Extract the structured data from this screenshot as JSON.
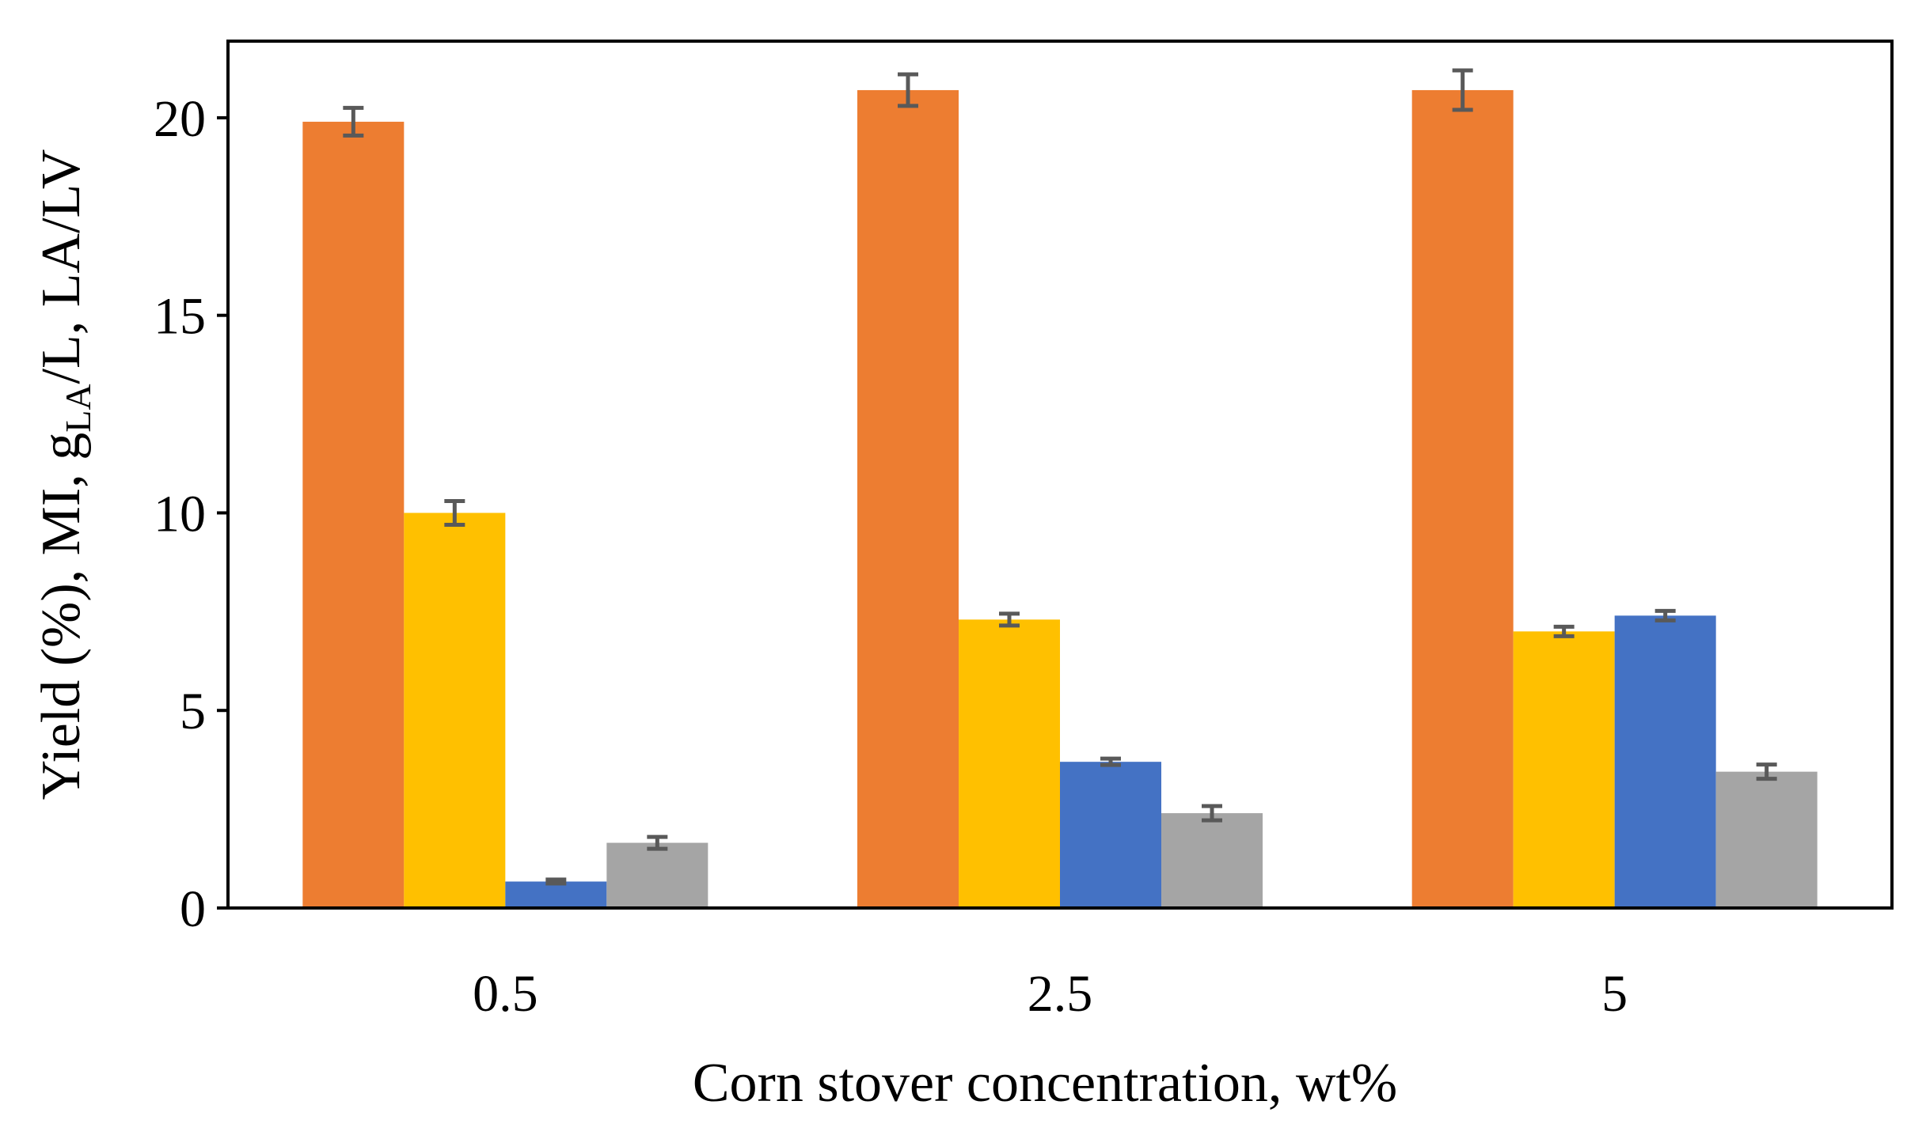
{
  "chart_data": {
    "type": "bar",
    "title": "",
    "xlabel": "Corn stover concentration, wt%",
    "ylabel": {
      "part1": "Yield (%), MI, g",
      "subscript": "LA",
      "part2": "/L,  LA/LV"
    },
    "categories": [
      "0.5",
      "2.5",
      "5"
    ],
    "ylim": [
      0,
      21.94
    ],
    "yticks": [
      0,
      5,
      10,
      15,
      20
    ],
    "ytick_labels": [
      "0",
      "5",
      "10",
      "15",
      "20"
    ],
    "grid": false,
    "legend": "none",
    "series": [
      {
        "name": "Yield (%)",
        "color": "#ED7D31",
        "values": [
          19.9,
          20.7,
          20.7
        ],
        "errors": [
          0.35,
          0.4,
          0.5
        ]
      },
      {
        "name": "MI",
        "color": "#FFC000",
        "values": [
          10.0,
          7.3,
          7.0
        ],
        "errors": [
          0.3,
          0.15,
          0.12
        ]
      },
      {
        "name": "g_LA/L",
        "color": "#4472C4",
        "values": [
          0.67,
          3.7,
          7.4
        ],
        "errors": [
          0.05,
          0.08,
          0.12
        ]
      },
      {
        "name": "LA/LV",
        "color": "#A5A5A5",
        "values": [
          1.65,
          2.4,
          3.45
        ],
        "errors": [
          0.15,
          0.18,
          0.18
        ]
      }
    ]
  }
}
